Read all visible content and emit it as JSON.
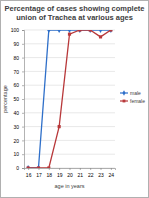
{
  "chart_data": {
    "type": "line",
    "title": "Percentage of cases showing complete union of Trachea at various ages",
    "x_label": "age in years",
    "y_label": "percentage",
    "categories": [
      "16",
      "17",
      "18",
      "19",
      "20",
      "21",
      "22",
      "23",
      "24"
    ],
    "series": [
      {
        "name": "male",
        "color": "#2e6fc9",
        "marker": "diamond",
        "values": [
          0,
          0,
          100,
          100,
          100,
          100,
          100,
          100,
          100
        ]
      },
      {
        "name": "female",
        "color": "#b8383a",
        "marker": "square",
        "values": [
          0,
          0,
          0,
          30,
          97,
          100,
          100,
          95,
          100
        ]
      }
    ],
    "ylim": [
      0,
      100
    ],
    "yticks": [
      0,
      10,
      20,
      30,
      40,
      50,
      60,
      70,
      80,
      90,
      100
    ],
    "grid": true,
    "legend": "right"
  }
}
